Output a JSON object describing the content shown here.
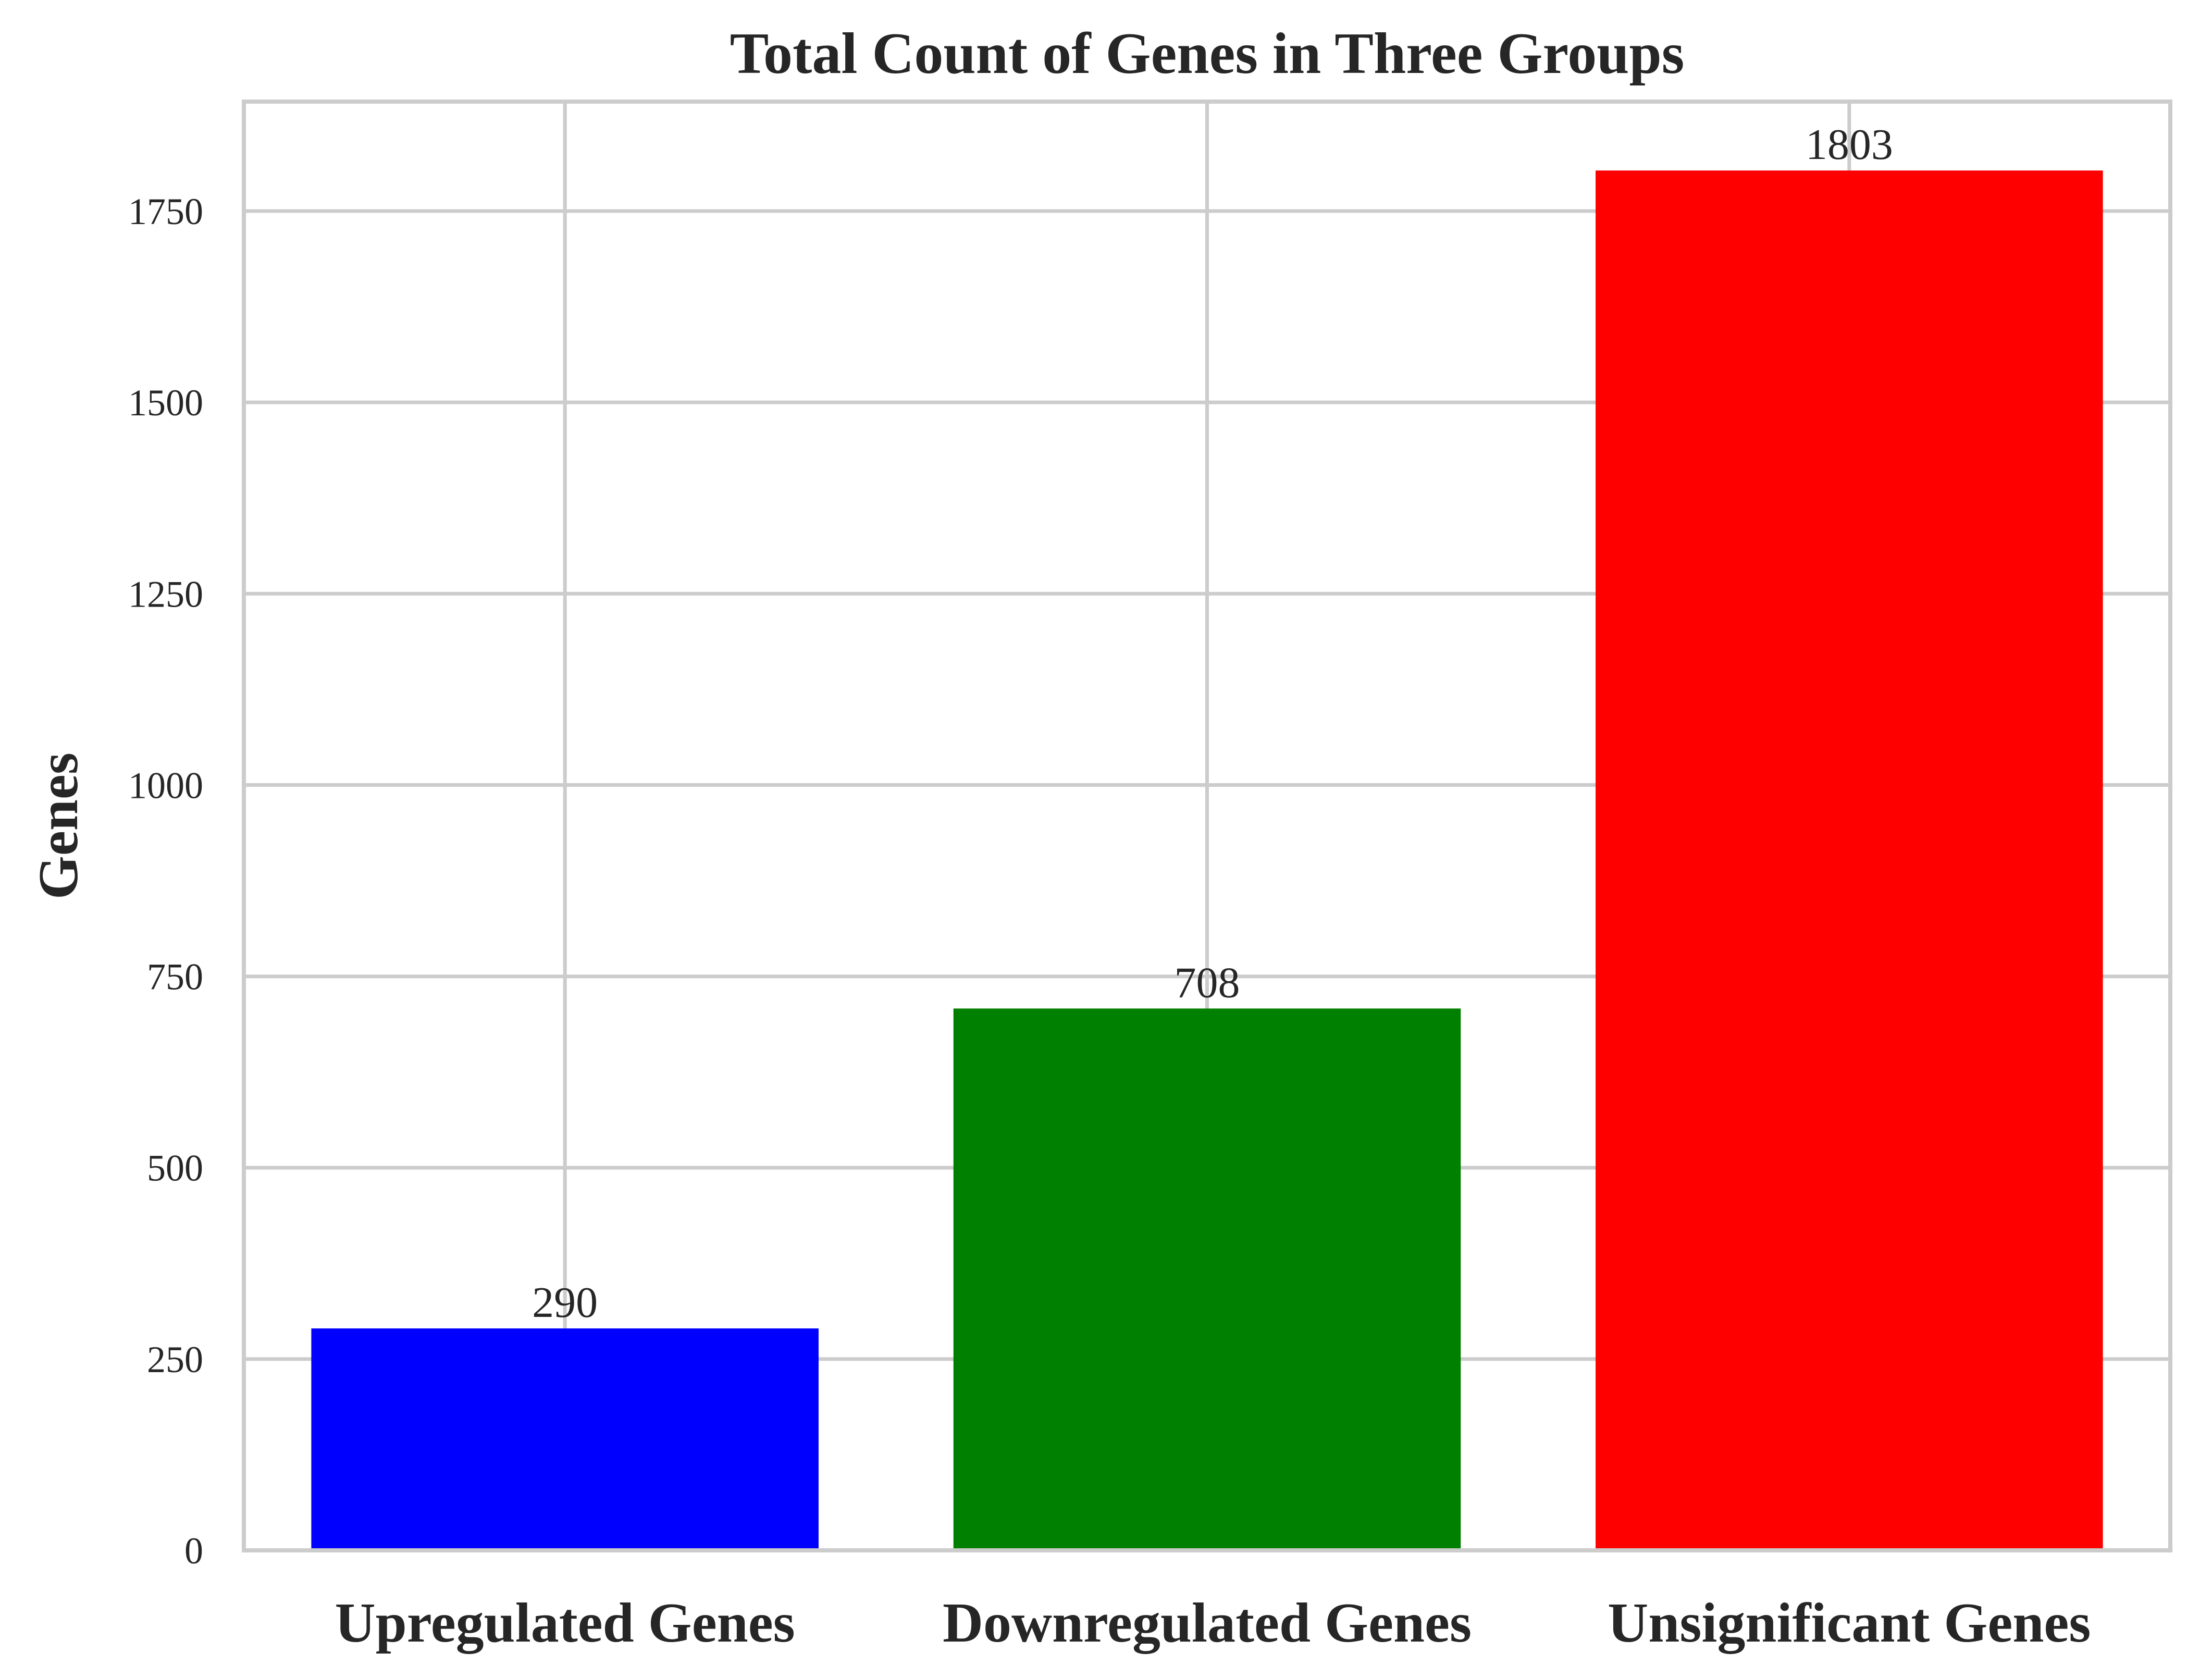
{
  "chart_data": {
    "type": "bar",
    "title": "Total Count of Genes in Three Groups",
    "xlabel": "",
    "ylabel": "Genes",
    "categories": [
      "Upregulated Genes",
      "Downregulated Genes",
      "Unsignificant Genes"
    ],
    "values": [
      290,
      708,
      1803
    ],
    "data_labels": [
      "290",
      "708",
      "1803"
    ],
    "colors": [
      "#0000ff",
      "#008000",
      "#ff0000"
    ],
    "ylim": [
      0,
      1893
    ],
    "yticks": [
      0,
      250,
      500,
      750,
      1000,
      1250,
      1500,
      1750
    ],
    "ytick_labels": [
      "0",
      "250",
      "500",
      "750",
      "1000",
      "1250",
      "1500",
      "1750"
    ],
    "grid": true,
    "legend": "none"
  }
}
